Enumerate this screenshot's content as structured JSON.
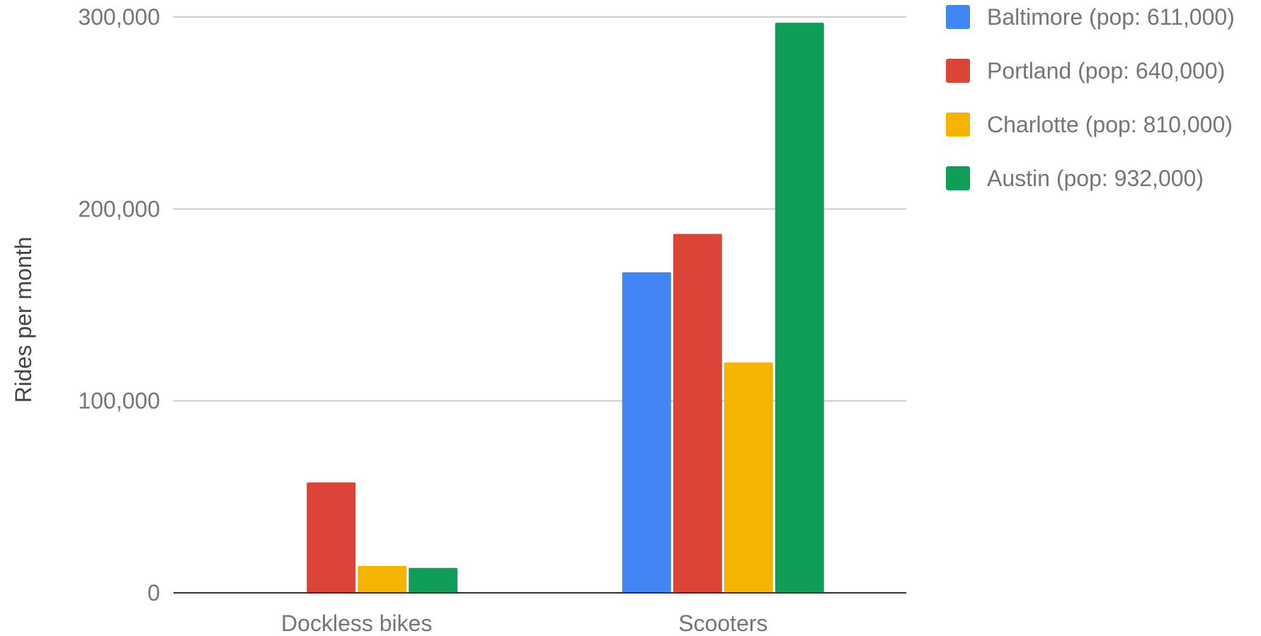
{
  "chart_data": {
    "type": "bar",
    "title": "",
    "xlabel": "",
    "ylabel": "Rides per month",
    "categories": [
      "Dockless bikes",
      "Scooters"
    ],
    "series": [
      {
        "name": "Baltimore (pop: 611,000)",
        "color": "#4285F4",
        "values": [
          0,
          167000
        ]
      },
      {
        "name": "Portland (pop: 640,000)",
        "color": "#DB4437",
        "values": [
          57500,
          187000
        ]
      },
      {
        "name": "Charlotte (pop: 810,000)",
        "color": "#F4B400",
        "values": [
          14000,
          120000
        ]
      },
      {
        "name": "Austin (pop: 932,000)",
        "color": "#0F9D58",
        "values": [
          13000,
          297000
        ]
      }
    ],
    "ylim": [
      0,
      300000
    ],
    "yticks": [
      0,
      100000,
      200000,
      300000
    ],
    "ytick_labels": [
      "0",
      "100,000",
      "200,000",
      "300,000"
    ],
    "grid": true,
    "legend_position": "right"
  }
}
